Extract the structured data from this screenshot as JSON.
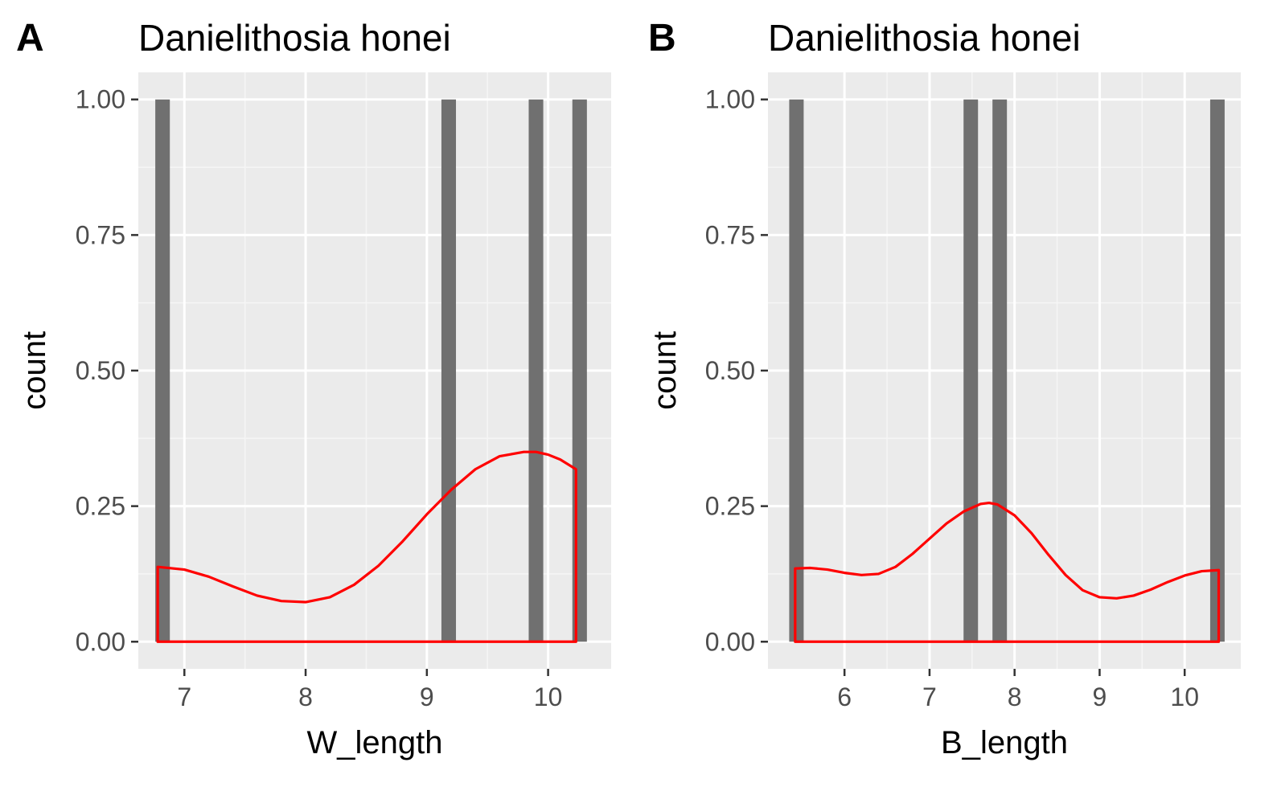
{
  "colors": {
    "panel_background": "#ebebeb",
    "grid_major": "#ffffff",
    "grid_minor": "#f5f5f5",
    "bar_fill": "#707070",
    "density_line": "#ff0000",
    "tick_text": "#4d4d4d",
    "tick_mark": "#333333"
  },
  "chart_data": [
    {
      "type": "bar",
      "tag": "A",
      "title": "Danielithosia honei",
      "xlabel": "W_length",
      "ylabel": "count",
      "xlim": [
        6.62,
        10.52
      ],
      "ylim": [
        -0.05,
        1.05
      ],
      "xticks": [
        7,
        8,
        9,
        10
      ],
      "yticks": [
        0.0,
        0.25,
        0.5,
        0.75,
        1.0
      ],
      "ytick_labels": [
        "0.00",
        "0.25",
        "0.50",
        "0.75",
        "1.00"
      ],
      "grid": true,
      "bars": [
        {
          "x0": 6.76,
          "x1": 6.88,
          "count": 1
        },
        {
          "x0": 9.12,
          "x1": 9.24,
          "count": 1
        },
        {
          "x0": 9.84,
          "x1": 9.96,
          "count": 1
        },
        {
          "x0": 10.2,
          "x1": 10.32,
          "count": 1
        }
      ],
      "density": {
        "x": [
          6.78,
          7.0,
          7.2,
          7.4,
          7.6,
          7.8,
          8.0,
          8.2,
          8.4,
          8.6,
          8.8,
          9.0,
          9.2,
          9.4,
          9.6,
          9.8,
          9.9,
          10.0,
          10.1,
          10.23
        ],
        "y": [
          0.138,
          0.133,
          0.12,
          0.102,
          0.085,
          0.075,
          0.073,
          0.082,
          0.105,
          0.14,
          0.185,
          0.235,
          0.28,
          0.318,
          0.342,
          0.35,
          0.35,
          0.345,
          0.336,
          0.318
        ]
      }
    },
    {
      "type": "bar",
      "tag": "B",
      "title": "Danielithosia honei",
      "xlabel": "B_length",
      "ylabel": "count",
      "xlim": [
        5.1,
        10.66
      ],
      "ylim": [
        -0.05,
        1.05
      ],
      "xticks": [
        6,
        7,
        8,
        9,
        10
      ],
      "yticks": [
        0.0,
        0.25,
        0.5,
        0.75,
        1.0
      ],
      "ytick_labels": [
        "0.00",
        "0.25",
        "0.50",
        "0.75",
        "1.00"
      ],
      "grid": true,
      "bars": [
        {
          "x0": 5.35,
          "x1": 5.52,
          "count": 1
        },
        {
          "x0": 7.4,
          "x1": 7.57,
          "count": 1
        },
        {
          "x0": 7.74,
          "x1": 7.91,
          "count": 1
        },
        {
          "x0": 10.3,
          "x1": 10.47,
          "count": 1
        }
      ],
      "density": {
        "x": [
          5.42,
          5.6,
          5.8,
          6.0,
          6.2,
          6.4,
          6.6,
          6.8,
          7.0,
          7.2,
          7.4,
          7.6,
          7.7,
          7.8,
          8.0,
          8.2,
          8.4,
          8.6,
          8.8,
          9.0,
          9.2,
          9.4,
          9.6,
          9.8,
          10.0,
          10.2,
          10.4
        ],
        "y": [
          0.135,
          0.136,
          0.133,
          0.127,
          0.123,
          0.125,
          0.138,
          0.162,
          0.19,
          0.218,
          0.24,
          0.254,
          0.256,
          0.253,
          0.233,
          0.2,
          0.16,
          0.123,
          0.095,
          0.082,
          0.08,
          0.085,
          0.096,
          0.11,
          0.122,
          0.13,
          0.132
        ]
      }
    }
  ]
}
